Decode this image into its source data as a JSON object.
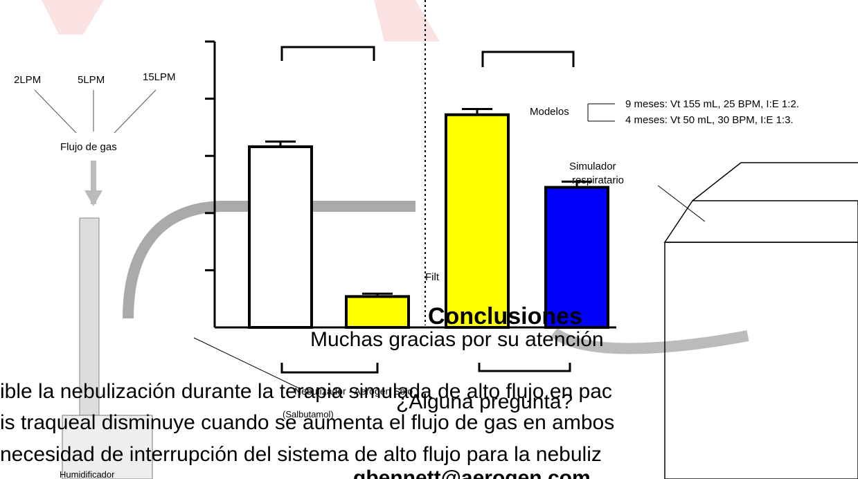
{
  "chart_data": {
    "type": "bar",
    "categories": [
      null,
      null,
      null,
      null
    ],
    "values": [
      3.16,
      0.54,
      3.72,
      2.45
    ],
    "errors": [
      0.09,
      0.05,
      0.1,
      0.1
    ],
    "colors": [
      "#ffffff",
      "#ffff00",
      "#ffff00",
      "#0000ff"
    ],
    "ylim": [
      0,
      5
    ],
    "yticks": [
      1,
      2,
      3,
      4,
      5
    ]
  },
  "diagram": {
    "flows": [
      "2LPM",
      "5LPM",
      "15LPM"
    ],
    "flow_label": "Flujo de gas",
    "humidifier": "Humidificador",
    "nebulizer": "Nebulizador - Aerogen Solo",
    "drug": "(Salbutamol)",
    "filter": "Filt",
    "models_label": "Modelos",
    "models": [
      "9 meses: Vt 155 mL, 25 BPM, I:E 1:2.",
      "4 meses: Vt 50 mL, 30 BPM, I:E 1:3."
    ],
    "simulator": [
      "Simulador",
      "respiratario"
    ]
  },
  "slide": {
    "conclusions_title": "Conclusiones",
    "conclusions": [
      "ible la nebulización durante la terapia simulada de alto flujo en pac",
      "is traqueal disminuye cuando se aumenta el flujo de gas en ambos",
      "necesidad de interrupción del sistema de alto flujo para la nebuliz"
    ],
    "thanks": "Muchas gracias por su atención",
    "question": "¿Alguna pregunta?",
    "email": "gbennett@aerogen.com"
  }
}
